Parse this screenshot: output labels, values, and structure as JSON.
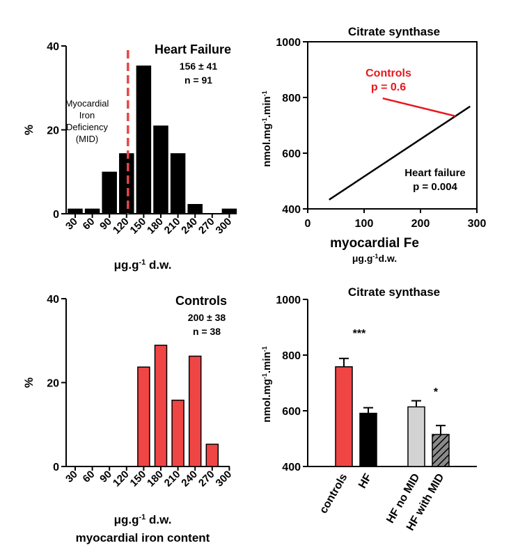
{
  "colors": {
    "black": "#000000",
    "red": "#f04545",
    "red_text": "#e8171d",
    "red_dashed": "#e84545",
    "gray": "#d3d3d3"
  },
  "chart_data": [
    {
      "id": "hf-histogram",
      "type": "bar",
      "title": "Heart Failure",
      "stats": [
        "156 ± 41",
        "n = 91"
      ],
      "annotation": [
        "Myocardial",
        "Iron",
        "Deficiency",
        "(MID)"
      ],
      "categories": [
        "30",
        "60",
        "90",
        "120",
        "150",
        "180",
        "210",
        "240",
        "270",
        "300"
      ],
      "values": [
        1.1,
        1.1,
        9.9,
        14.3,
        35.2,
        20.9,
        14.3,
        2.2,
        0,
        1.1
      ],
      "cutoff_line_at": 120,
      "xlabel": "μg.g-1 d.w.",
      "ylabel": "%",
      "ylim": [
        0,
        40
      ],
      "yticks": [
        0,
        20,
        40
      ],
      "bar_color": "#000000"
    },
    {
      "id": "correlation",
      "type": "line",
      "title": "Citrate synthase",
      "series": [
        {
          "name": "Heart failure",
          "p_value": "p = 0.004",
          "x": [
            38,
            288
          ],
          "y": [
            433,
            768
          ],
          "color": "#000000"
        },
        {
          "name": "Controls",
          "p_value": "p = 0.6",
          "x": [
            133,
            262
          ],
          "y": [
            797,
            733
          ],
          "color": "#e8171d"
        }
      ],
      "xlabel": "myocardial Fe",
      "xunit": "μg.g-1d.w.",
      "ylabel": "nmol.mg-1.min-1",
      "xlim": [
        0,
        300
      ],
      "xticks": [
        0,
        100,
        200,
        300
      ],
      "ylim": [
        400,
        1000
      ],
      "yticks": [
        400,
        600,
        800,
        1000
      ]
    },
    {
      "id": "controls-histogram",
      "type": "bar",
      "title": "Controls",
      "stats": [
        "200 ± 38",
        "n = 38"
      ],
      "categories": [
        "30",
        "60",
        "90",
        "120",
        "150",
        "180",
        "210",
        "240",
        "270",
        "300"
      ],
      "values": [
        0,
        0,
        0,
        0,
        23.7,
        28.9,
        15.8,
        26.3,
        5.3,
        0
      ],
      "xlabel": "μg.g-1 d.w.",
      "caption": "myocardial iron content",
      "ylabel": "%",
      "ylim": [
        0,
        40
      ],
      "yticks": [
        0,
        20,
        40
      ],
      "bar_color": "#f04545"
    },
    {
      "id": "cs-bars",
      "type": "bar",
      "title": "Citrate synthase",
      "categories": [
        "controls",
        "HF",
        "HF no MID",
        "HF with MID"
      ],
      "values": [
        758,
        591,
        614,
        515
      ],
      "errors": [
        30,
        20,
        22,
        32
      ],
      "significance": [
        "",
        "***",
        "",
        "*"
      ],
      "fills": [
        "#f04545",
        "#000000",
        "#d3d3d3",
        "hatched"
      ],
      "ylabel": "nmol.mg-1.min-1",
      "ylim": [
        400,
        1000
      ],
      "yticks": [
        400,
        600,
        800,
        1000
      ]
    }
  ]
}
